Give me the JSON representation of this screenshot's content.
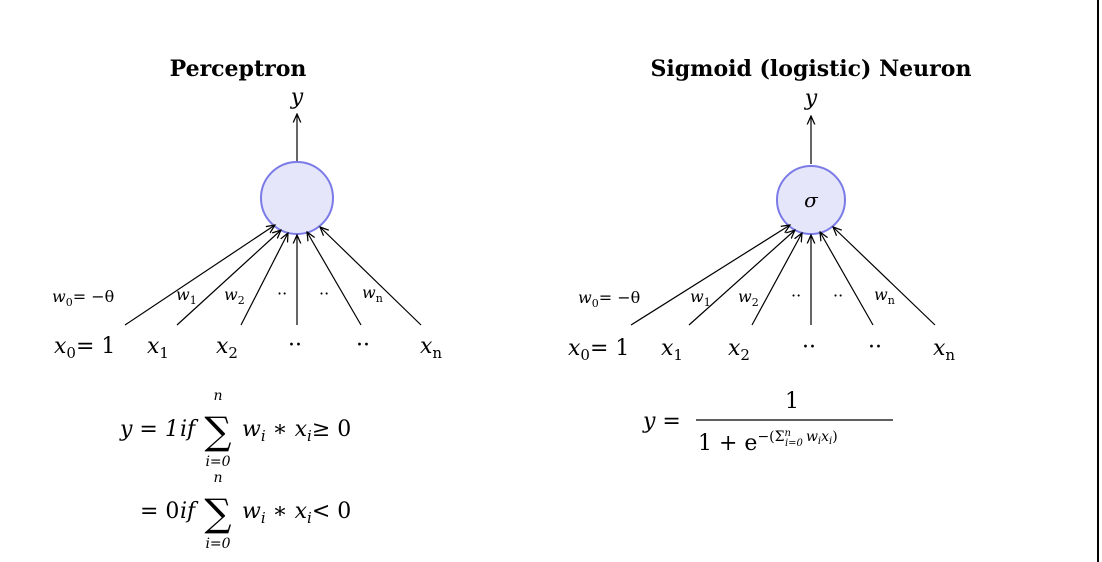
{
  "perceptron": {
    "title": "Perceptron",
    "output_label": "y",
    "weights": [
      "w",
      "w",
      "w",
      "··",
      "··",
      "w"
    ],
    "weight_subs": [
      "0",
      "1",
      "2",
      "",
      "",
      "n"
    ],
    "w0_rhs": "= −θ",
    "inputs": [
      "x",
      "x",
      "x",
      "··",
      "··",
      "x"
    ],
    "input_subs": [
      "0",
      "1",
      "2",
      "",
      "",
      "n"
    ],
    "x0_rhs": "= 1",
    "rule1_lhs": "y = 1",
    "rule1_cond": "if",
    "rule1_sum_top": "n",
    "rule1_sum_bottom": "i=0",
    "rule1_body": "w",
    "rule1_op": "≥ 0",
    "rule2_lhs": "= 0",
    "rule2_cond": "if",
    "rule2_sum_top": "n",
    "rule2_sum_bottom": "i=0",
    "rule2_op": "< 0"
  },
  "sigmoid": {
    "title": "Sigmoid (logistic) Neuron",
    "output_label": "y",
    "neuron_symbol": "σ",
    "weights": [
      "w",
      "w",
      "w",
      "··",
      "··",
      "w"
    ],
    "weight_subs": [
      "0",
      "1",
      "2",
      "",
      "",
      "n"
    ],
    "w0_rhs": "= −θ",
    "inputs": [
      "x",
      "x",
      "x",
      "··",
      "··",
      "x"
    ],
    "input_subs": [
      "0",
      "1",
      "2",
      "",
      "",
      "n"
    ],
    "x0_rhs": "= 1",
    "formula_lhs": "y =",
    "formula_numerator": "1",
    "formula_denominator_base": "1 + e",
    "formula_exponent": "−(Σ",
    "formula_exp_sup": "n",
    "formula_exp_sub": "i=0",
    "formula_exp_body": "w",
    "formula_exp_close": ")"
  },
  "colors": {
    "neuron_fill": "#e6e6fa",
    "neuron_stroke": "#7b7be8",
    "line": "#000000"
  }
}
